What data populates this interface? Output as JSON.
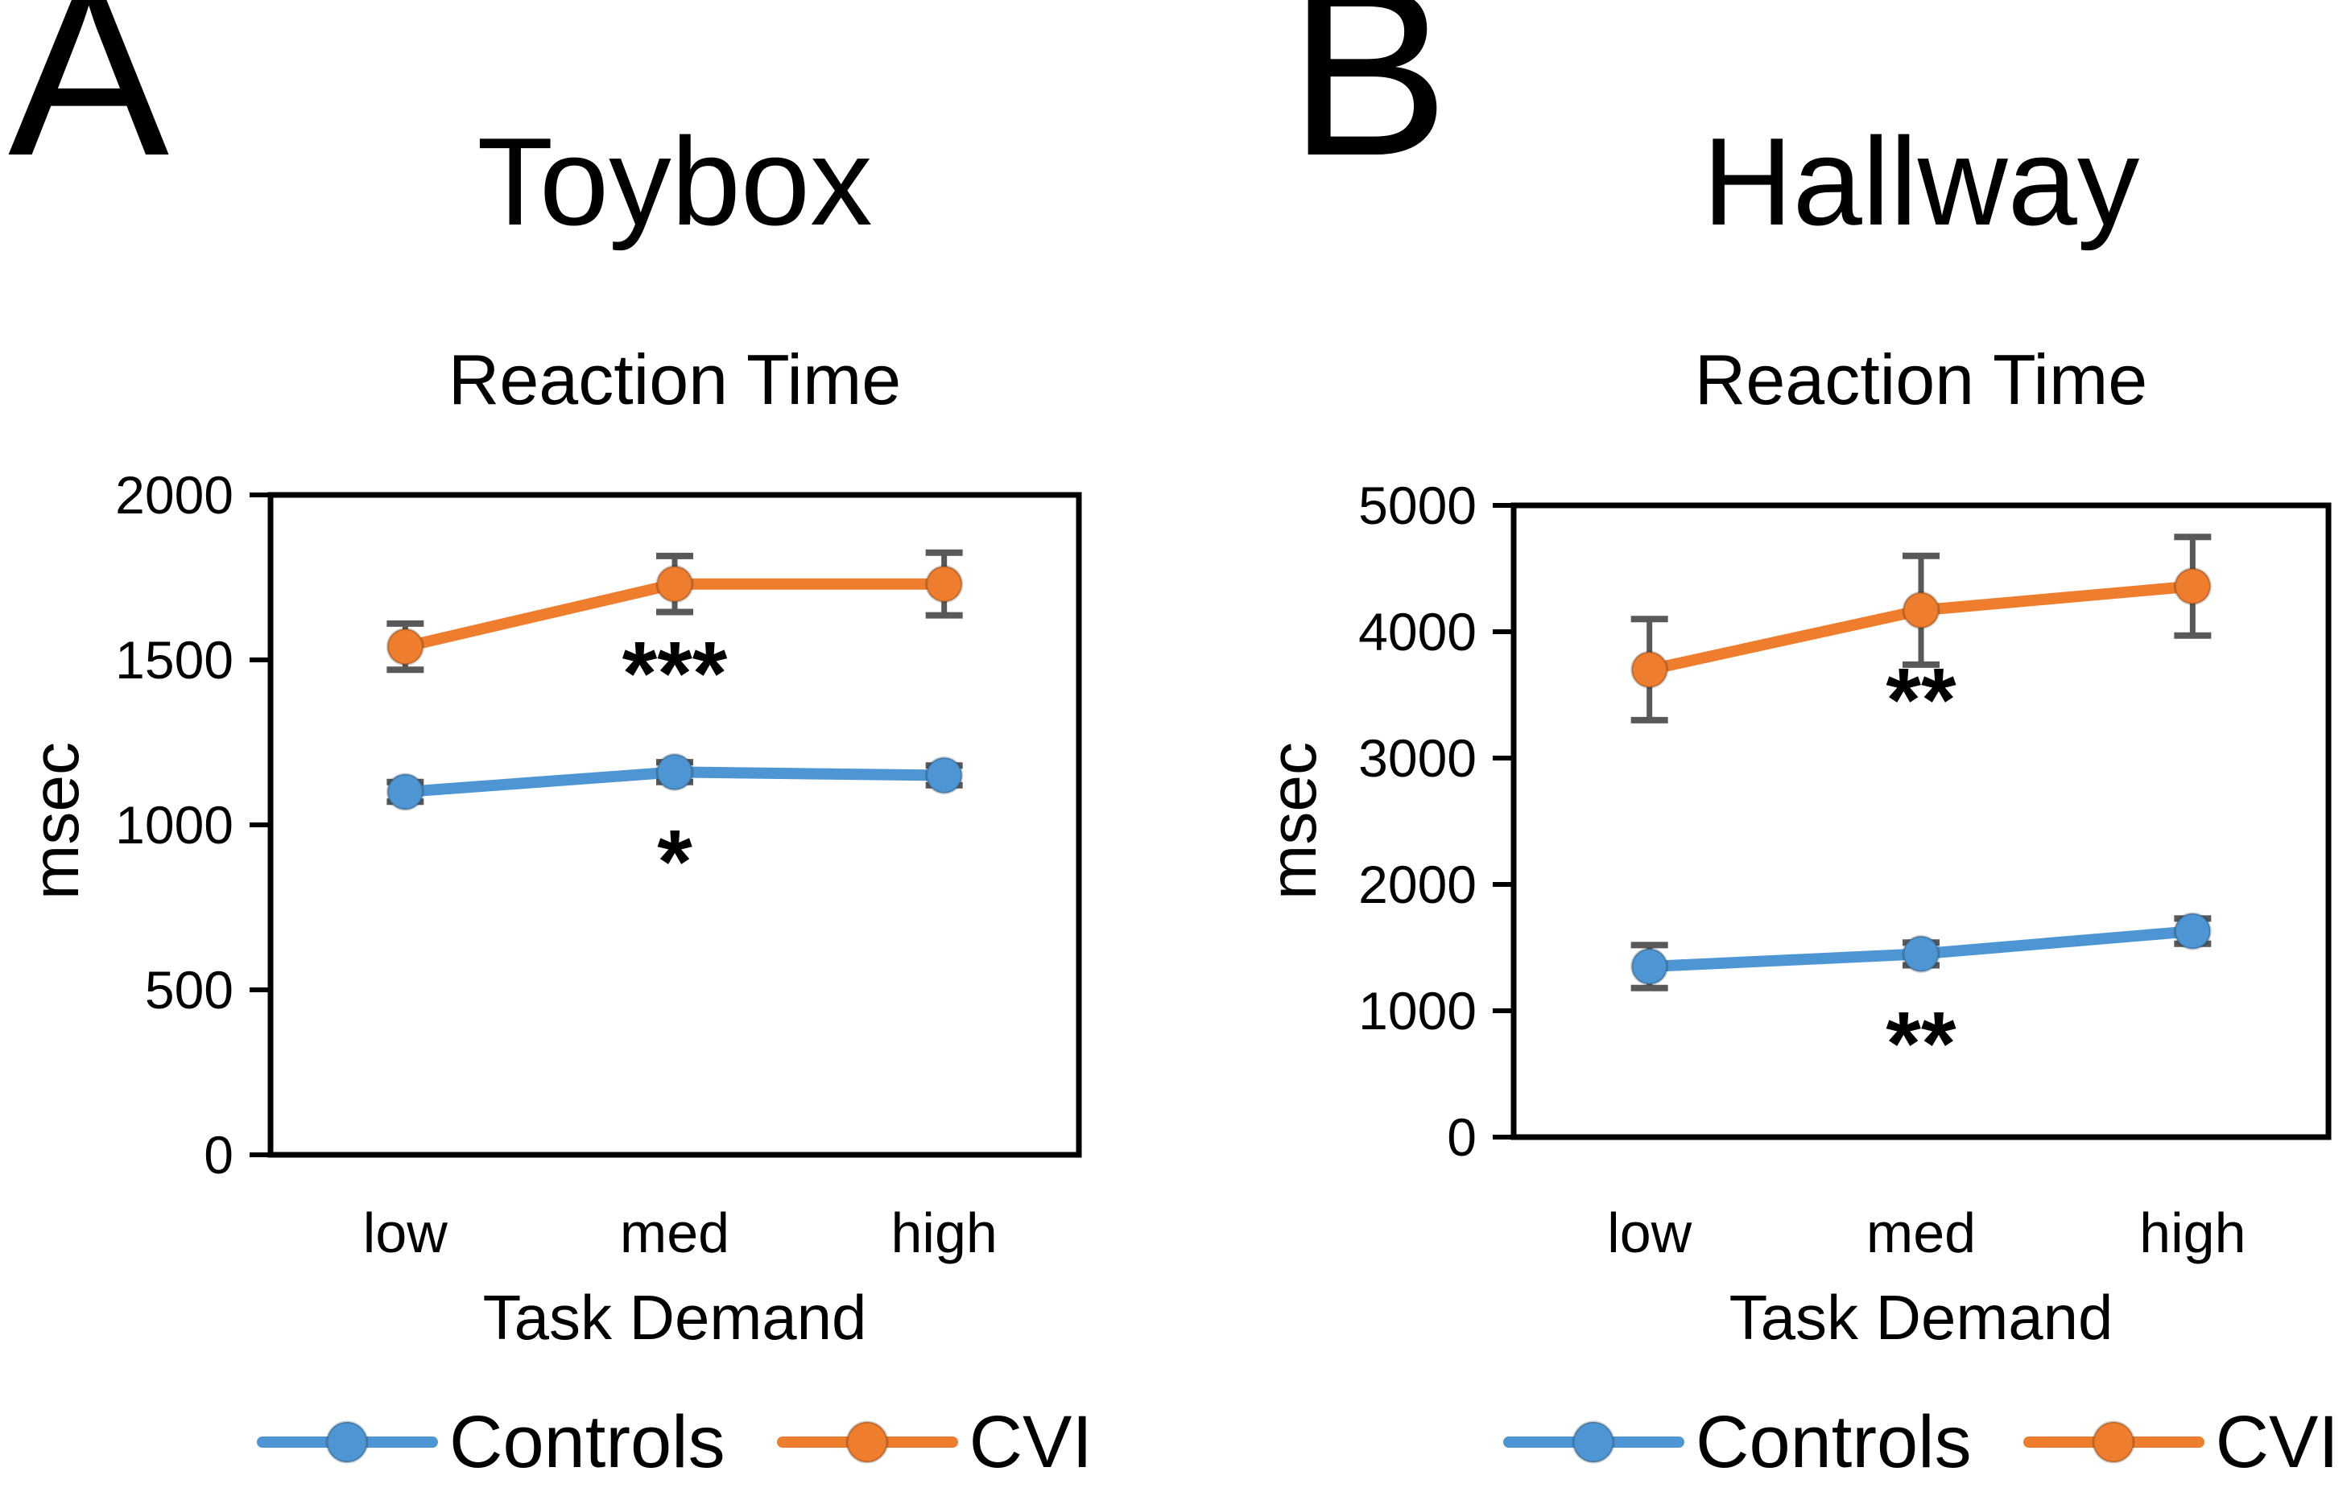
{
  "figure": {
    "panels": [
      {
        "letter": "A"
      },
      {
        "letter": "B"
      }
    ]
  },
  "colors": {
    "controls": "#4E96D3",
    "cvi": "#EE7D2E",
    "error_bar": "#595959",
    "frame": "#000000",
    "text": "#000000"
  },
  "chart_data": [
    {
      "type": "line",
      "panel": "A",
      "title": "Toybox",
      "subtitle": "Reaction Time",
      "xlabel": "Task Demand",
      "ylabel": "msec",
      "categories": [
        "low",
        "med",
        "high"
      ],
      "ylim": [
        0,
        2000
      ],
      "yticks": [
        0,
        500,
        1000,
        1500,
        2000
      ],
      "grid": false,
      "legend_position": "bottom",
      "series": [
        {
          "name": "Controls",
          "color": "#4E96D3",
          "values": [
            1100,
            1160,
            1150
          ],
          "errors": [
            30,
            30,
            30
          ]
        },
        {
          "name": "CVI",
          "color": "#EE7D2E",
          "values": [
            1540,
            1730,
            1730
          ],
          "errors": [
            70,
            85,
            95
          ]
        }
      ],
      "annotations": [
        {
          "series": "CVI",
          "category": "med",
          "label": "***"
        },
        {
          "series": "Controls",
          "category": "med",
          "label": "*"
        }
      ]
    },
    {
      "type": "line",
      "panel": "B",
      "title": "Hallway",
      "subtitle": "Reaction Time",
      "xlabel": "Task Demand",
      "ylabel": "msec",
      "categories": [
        "low",
        "med",
        "high"
      ],
      "ylim": [
        0,
        5000
      ],
      "yticks": [
        0,
        1000,
        2000,
        3000,
        4000,
        5000
      ],
      "grid": false,
      "legend_position": "bottom",
      "series": [
        {
          "name": "Controls",
          "color": "#4E96D3",
          "values": [
            1350,
            1450,
            1630
          ],
          "errors": [
            170,
            90,
            100
          ]
        },
        {
          "name": "CVI",
          "color": "#EE7D2E",
          "values": [
            3700,
            4170,
            4360
          ],
          "errors": [
            400,
            430,
            390
          ]
        }
      ],
      "annotations": [
        {
          "series": "CVI",
          "category": "med",
          "label": "**"
        },
        {
          "series": "Controls",
          "category": "med",
          "label": "**"
        }
      ]
    }
  ]
}
